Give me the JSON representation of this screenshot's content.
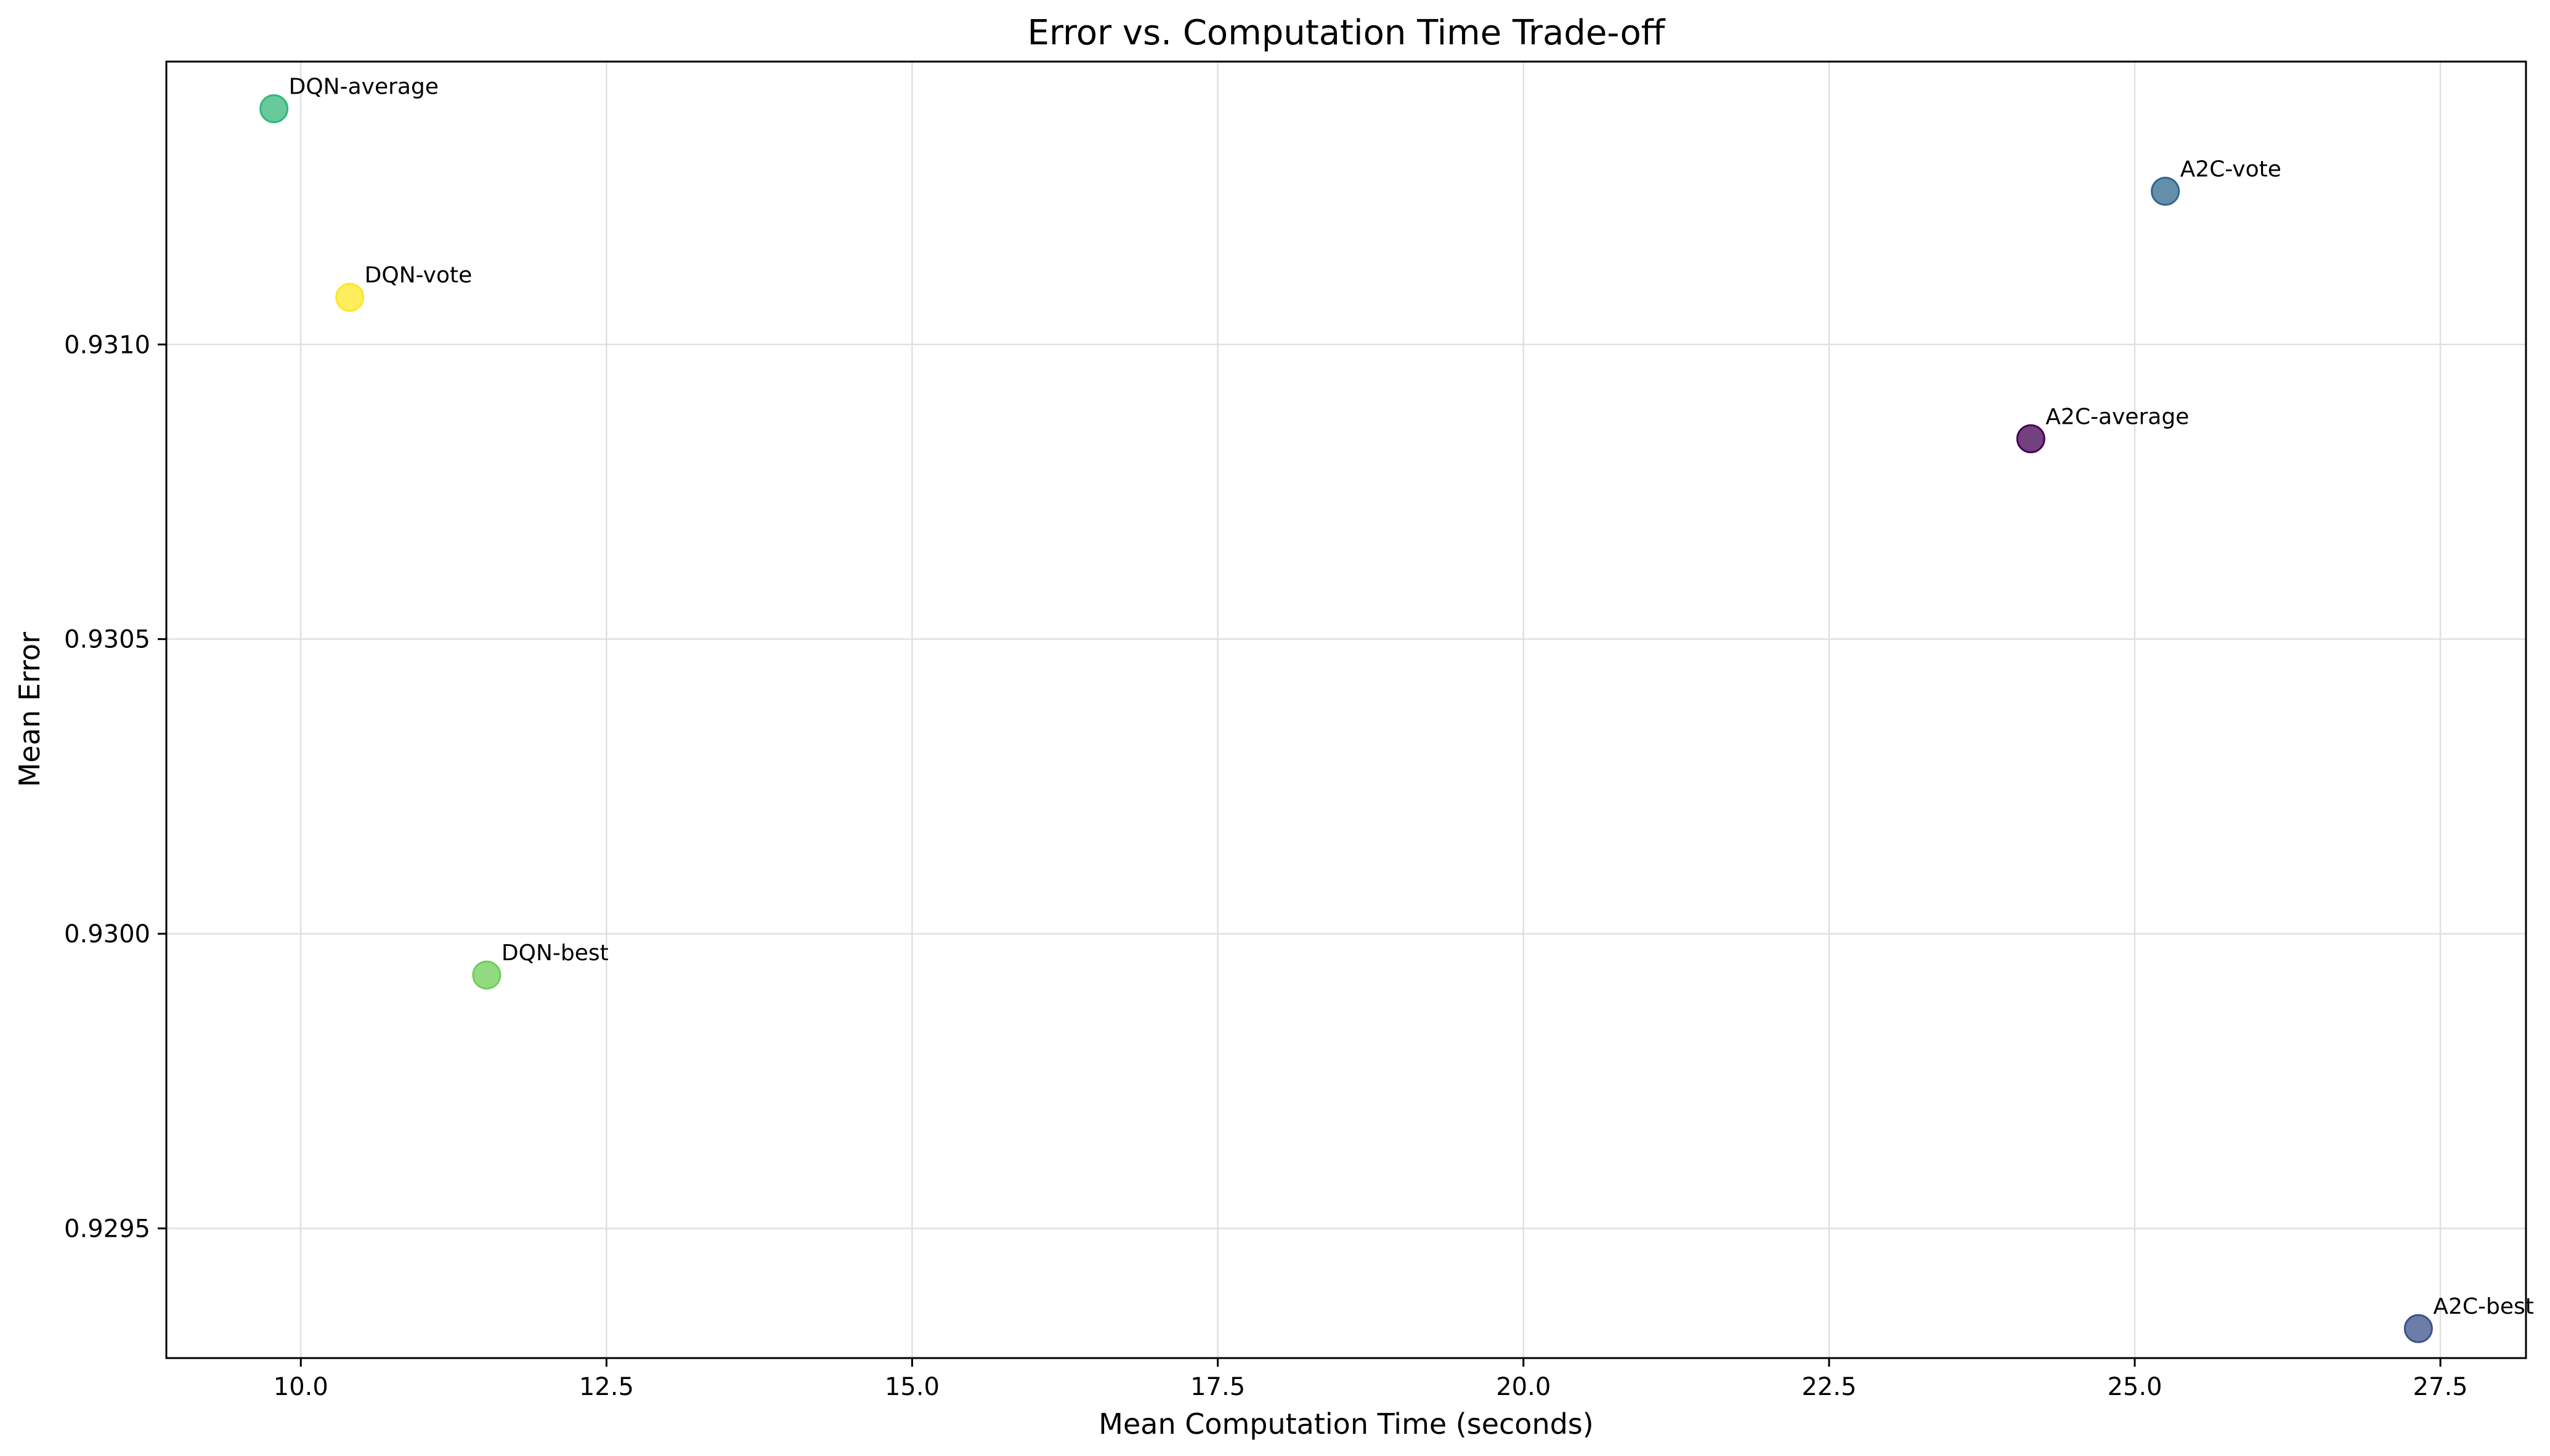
{
  "chart_data": {
    "type": "scatter",
    "title": "Error vs. Computation Time Trade-off",
    "xlabel": "Mean Computation Time (seconds)",
    "ylabel": "Mean Error",
    "xlim": [
      8.9,
      28.2
    ],
    "ylim": [
      0.92928,
      0.93148
    ],
    "xticks": [
      10.0,
      12.5,
      15.0,
      17.5,
      20.0,
      22.5,
      25.0,
      27.5
    ],
    "xtick_labels": [
      "10.0",
      "12.5",
      "15.0",
      "17.5",
      "20.0",
      "22.5",
      "25.0",
      "27.5"
    ],
    "yticks": [
      0.9295,
      0.93,
      0.9305,
      0.931
    ],
    "ytick_labels": [
      "0.9295",
      "0.9300",
      "0.9305",
      "0.9310"
    ],
    "grid": true,
    "points": [
      {
        "label": "DQN-average",
        "x": 9.78,
        "y": 0.9314,
        "color": "#35b779"
      },
      {
        "label": "A2C-vote",
        "x": 25.25,
        "y": 0.93126,
        "color": "#31688e"
      },
      {
        "label": "DQN-vote",
        "x": 10.4,
        "y": 0.93108,
        "color": "#fde725"
      },
      {
        "label": "A2C-average",
        "x": 24.15,
        "y": 0.93084,
        "color": "#440154"
      },
      {
        "label": "DQN-best",
        "x": 11.52,
        "y": 0.92993,
        "color": "#6ece58"
      },
      {
        "label": "A2C-best",
        "x": 27.32,
        "y": 0.92933,
        "color": "#3b528b"
      }
    ]
  }
}
